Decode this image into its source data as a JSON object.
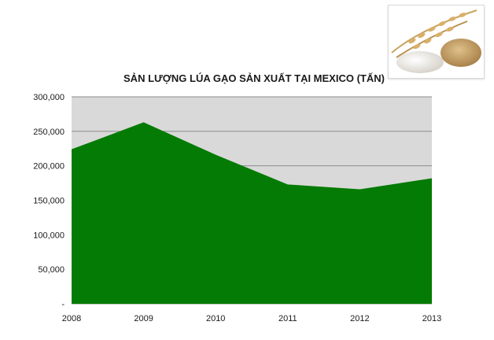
{
  "colors": {
    "area_fill": "#047b04",
    "plot_background": "#d9d9d9",
    "gridline": "#8c8c8c"
  },
  "photo": {
    "icon": "rice-grains-photo-icon"
  },
  "chart_data": {
    "type": "area",
    "title": "SẢN LƯỢNG LÚA GẠO SẢN XUẤT TẠI MEXICO (TẤN)",
    "xlabel": "",
    "ylabel": "",
    "categories": [
      "2008",
      "2009",
      "2010",
      "2011",
      "2012",
      "2013"
    ],
    "series": [
      {
        "values": [
          224000,
          263000,
          216000,
          173000,
          166000,
          182000
        ]
      }
    ],
    "ylim": [
      0,
      300000
    ],
    "yticks": [
      0,
      50000,
      100000,
      150000,
      200000,
      250000,
      300000
    ],
    "ytick_labels": [
      "-",
      "50,000",
      "100,000",
      "150,000",
      "200,000",
      "250,000",
      "300,000"
    ],
    "grid": true,
    "legend": "none"
  }
}
